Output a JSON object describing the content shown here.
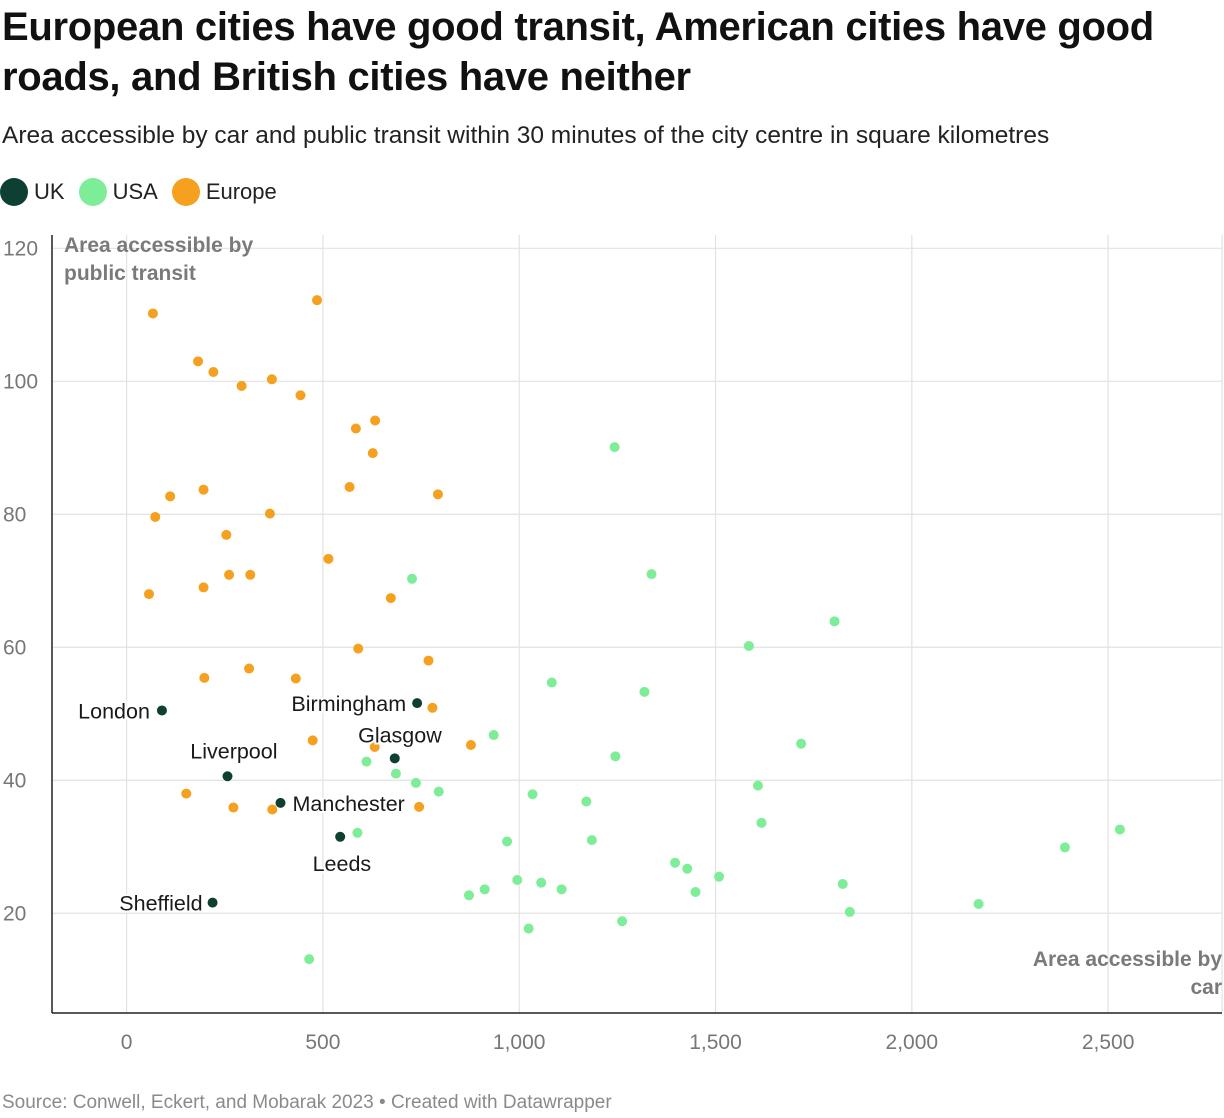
{
  "title": "European cities have good transit, American cities have good roads, and British cities have neither",
  "subtitle": "Area accessible by car and public transit within 30 minutes of the city centre in square kilometres",
  "source": "Source: Conwell, Eckert, and Mobarak 2023 • Created with Datawrapper",
  "legend": [
    {
      "name": "UK",
      "color": "#0d4032"
    },
    {
      "name": "USA",
      "color": "#7ded97"
    },
    {
      "name": "Europe",
      "color": "#f5a01e"
    }
  ],
  "chart_data": {
    "type": "scatter",
    "xlabel": "Area accessible by car",
    "ylabel": "Area accessible by public transit",
    "xlim": [
      -190,
      2790
    ],
    "ylim": [
      5,
      122
    ],
    "xticks": [
      0,
      500,
      1000,
      1500,
      2000,
      2500
    ],
    "xtick_labels": [
      "0",
      "500",
      "1,000",
      "1,500",
      "2,000",
      "2,500"
    ],
    "yticks": [
      20,
      40,
      60,
      80,
      100,
      120
    ],
    "ytick_labels": [
      "20",
      "40",
      "60",
      "80",
      "100",
      "120"
    ],
    "grid": true,
    "legend_position": "top-left",
    "series": [
      {
        "name": "UK",
        "color": "#0d4032",
        "points": [
          {
            "x": 90,
            "y": 50.5,
            "label": "London"
          },
          {
            "x": 740,
            "y": 51.6,
            "label": "Birmingham"
          },
          {
            "x": 683,
            "y": 43.3,
            "label": "Glasgow"
          },
          {
            "x": 257,
            "y": 40.6,
            "label": "Liverpool"
          },
          {
            "x": 392,
            "y": 36.6,
            "label": "Manchester"
          },
          {
            "x": 544,
            "y": 31.5,
            "label": "Leeds"
          },
          {
            "x": 219,
            "y": 21.6,
            "label": "Sheffield"
          }
        ]
      },
      {
        "name": "USA",
        "color": "#7ded97",
        "points": [
          {
            "x": 1243,
            "y": 90.1
          },
          {
            "x": 1337,
            "y": 71.0
          },
          {
            "x": 727,
            "y": 70.3
          },
          {
            "x": 1803,
            "y": 63.9
          },
          {
            "x": 1585,
            "y": 60.2
          },
          {
            "x": 1083,
            "y": 54.7
          },
          {
            "x": 1319,
            "y": 53.3
          },
          {
            "x": 935,
            "y": 46.8
          },
          {
            "x": 1718,
            "y": 45.5
          },
          {
            "x": 1245,
            "y": 43.6
          },
          {
            "x": 611,
            "y": 42.8
          },
          {
            "x": 686,
            "y": 41.0
          },
          {
            "x": 737,
            "y": 39.6
          },
          {
            "x": 1608,
            "y": 39.2
          },
          {
            "x": 795,
            "y": 38.3
          },
          {
            "x": 1034,
            "y": 37.9
          },
          {
            "x": 1171,
            "y": 36.8
          },
          {
            "x": 1617,
            "y": 33.6
          },
          {
            "x": 2530,
            "y": 32.6
          },
          {
            "x": 588,
            "y": 32.1
          },
          {
            "x": 1185,
            "y": 31.0
          },
          {
            "x": 969,
            "y": 30.8
          },
          {
            "x": 2390,
            "y": 29.9
          },
          {
            "x": 1397,
            "y": 27.6
          },
          {
            "x": 1428,
            "y": 26.7
          },
          {
            "x": 1509,
            "y": 25.5
          },
          {
            "x": 995,
            "y": 25.0
          },
          {
            "x": 1056,
            "y": 24.6
          },
          {
            "x": 1824,
            "y": 24.4
          },
          {
            "x": 912,
            "y": 23.6
          },
          {
            "x": 1108,
            "y": 23.6
          },
          {
            "x": 1449,
            "y": 23.2
          },
          {
            "x": 872,
            "y": 22.7
          },
          {
            "x": 2170,
            "y": 21.4
          },
          {
            "x": 1842,
            "y": 20.2
          },
          {
            "x": 1262,
            "y": 18.8
          },
          {
            "x": 1024,
            "y": 17.7
          },
          {
            "x": 465,
            "y": 13.1
          }
        ]
      },
      {
        "name": "Europe",
        "color": "#f5a01e",
        "points": [
          {
            "x": 485,
            "y": 112.2
          },
          {
            "x": 67,
            "y": 110.2
          },
          {
            "x": 182,
            "y": 103.0
          },
          {
            "x": 221,
            "y": 101.4
          },
          {
            "x": 370,
            "y": 100.3
          },
          {
            "x": 293,
            "y": 99.3
          },
          {
            "x": 443,
            "y": 97.9
          },
          {
            "x": 633,
            "y": 94.1
          },
          {
            "x": 584,
            "y": 92.9
          },
          {
            "x": 627,
            "y": 89.2
          },
          {
            "x": 568,
            "y": 84.1
          },
          {
            "x": 793,
            "y": 83.0
          },
          {
            "x": 196,
            "y": 83.7
          },
          {
            "x": 111,
            "y": 82.7
          },
          {
            "x": 365,
            "y": 80.1
          },
          {
            "x": 73,
            "y": 79.6
          },
          {
            "x": 254,
            "y": 76.9
          },
          {
            "x": 514,
            "y": 73.3
          },
          {
            "x": 261,
            "y": 70.9
          },
          {
            "x": 315,
            "y": 70.9
          },
          {
            "x": 196,
            "y": 69.0
          },
          {
            "x": 57,
            "y": 68.0
          },
          {
            "x": 673,
            "y": 67.4
          },
          {
            "x": 590,
            "y": 59.8
          },
          {
            "x": 769,
            "y": 58.0
          },
          {
            "x": 312,
            "y": 56.8
          },
          {
            "x": 198,
            "y": 55.4
          },
          {
            "x": 431,
            "y": 55.3
          },
          {
            "x": 779,
            "y": 50.9
          },
          {
            "x": 474,
            "y": 46.0
          },
          {
            "x": 877,
            "y": 45.3
          },
          {
            "x": 632,
            "y": 45.0
          },
          {
            "x": 152,
            "y": 38.0
          },
          {
            "x": 272,
            "y": 35.9
          },
          {
            "x": 371,
            "y": 35.6
          },
          {
            "x": 745,
            "y": 36.0
          }
        ]
      }
    ]
  }
}
